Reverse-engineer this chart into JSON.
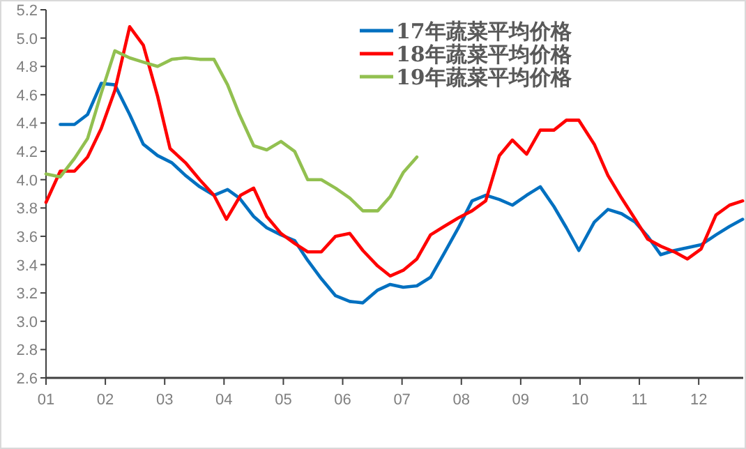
{
  "chart_data": {
    "type": "line",
    "xlim": [
      1,
      12.75
    ],
    "ylim": [
      2.6,
      5.2
    ],
    "xticks": [
      {
        "value": 1,
        "label": "01"
      },
      {
        "value": 2,
        "label": "02"
      },
      {
        "value": 3,
        "label": "03"
      },
      {
        "value": 4,
        "label": "04"
      },
      {
        "value": 5,
        "label": "05"
      },
      {
        "value": 6,
        "label": "06"
      },
      {
        "value": 7,
        "label": "07"
      },
      {
        "value": 8,
        "label": "08"
      },
      {
        "value": 9,
        "label": "09"
      },
      {
        "value": 10,
        "label": "10"
      },
      {
        "value": 11,
        "label": "11"
      },
      {
        "value": 12,
        "label": "12"
      }
    ],
    "yticks": [
      {
        "value": 2.6,
        "label": "2.6"
      },
      {
        "value": 2.8,
        "label": "2.8"
      },
      {
        "value": 3.0,
        "label": "3.0"
      },
      {
        "value": 3.2,
        "label": "3.2"
      },
      {
        "value": 3.4,
        "label": "3.4"
      },
      {
        "value": 3.6,
        "label": "3.6"
      },
      {
        "value": 3.8,
        "label": "3.8"
      },
      {
        "value": 4.0,
        "label": "4.0"
      },
      {
        "value": 4.2,
        "label": "4.2"
      },
      {
        "value": 4.4,
        "label": "4.4"
      },
      {
        "value": 4.6,
        "label": "4.6"
      },
      {
        "value": 4.8,
        "label": "4.8"
      },
      {
        "value": 5.0,
        "label": "5.0"
      },
      {
        "value": 5.2,
        "label": "5.2"
      }
    ],
    "grid": false,
    "legend": "top",
    "marker": "none",
    "line_style": "solid",
    "series": [
      {
        "name": "17年蔬菜平均价格",
        "color": "#0070c0",
        "x": [
          1.24,
          1.48,
          1.7,
          1.93,
          2.16,
          2.41,
          2.64,
          2.88,
          3.12,
          3.35,
          3.59,
          3.83,
          4.06,
          4.26,
          4.5,
          4.72,
          4.96,
          5.19,
          5.41,
          5.64,
          5.88,
          6.12,
          6.34,
          6.59,
          6.8,
          7.02,
          7.25,
          7.48,
          7.71,
          7.95,
          8.18,
          8.41,
          8.64,
          8.86,
          9.1,
          9.33,
          9.56,
          9.77,
          9.98,
          10.24,
          10.47,
          10.7,
          10.93,
          11.14,
          11.36,
          11.59,
          11.81,
          12.04,
          12.29,
          12.52,
          12.74
        ],
        "values": [
          4.39,
          4.39,
          4.46,
          4.68,
          4.67,
          4.46,
          4.25,
          4.17,
          4.12,
          4.03,
          3.95,
          3.89,
          3.93,
          3.87,
          3.74,
          3.66,
          3.61,
          3.57,
          3.43,
          3.3,
          3.18,
          3.14,
          3.13,
          3.22,
          3.26,
          3.24,
          3.25,
          3.31,
          3.48,
          3.66,
          3.85,
          3.89,
          3.86,
          3.82,
          3.89,
          3.95,
          3.81,
          3.66,
          3.5,
          3.7,
          3.79,
          3.76,
          3.7,
          3.6,
          3.47,
          3.5,
          3.52,
          3.54,
          3.61,
          3.67,
          3.72
        ]
      },
      {
        "name": "18年蔬菜平均价格",
        "color": "#ff0000",
        "x": [
          1.0,
          1.24,
          1.48,
          1.7,
          1.93,
          2.16,
          2.41,
          2.64,
          2.88,
          3.09,
          3.35,
          3.59,
          3.83,
          4.04,
          4.28,
          4.5,
          4.72,
          4.96,
          5.19,
          5.41,
          5.64,
          5.88,
          6.12,
          6.34,
          6.59,
          6.8,
          7.02,
          7.25,
          7.48,
          7.71,
          7.95,
          8.18,
          8.41,
          8.64,
          8.86,
          9.1,
          9.33,
          9.56,
          9.77,
          9.98,
          10.24,
          10.47,
          10.7,
          10.93,
          11.14,
          11.36,
          11.59,
          11.81,
          12.04,
          12.29,
          12.52,
          12.74
        ],
        "values": [
          3.84,
          4.06,
          4.06,
          4.16,
          4.36,
          4.63,
          5.08,
          4.95,
          4.59,
          4.22,
          4.12,
          4.0,
          3.89,
          3.72,
          3.89,
          3.94,
          3.74,
          3.62,
          3.55,
          3.49,
          3.49,
          3.6,
          3.62,
          3.5,
          3.39,
          3.32,
          3.36,
          3.44,
          3.61,
          3.67,
          3.73,
          3.78,
          3.85,
          4.17,
          4.28,
          4.18,
          4.35,
          4.35,
          4.42,
          4.42,
          4.25,
          4.03,
          3.87,
          3.72,
          3.58,
          3.53,
          3.49,
          3.44,
          3.51,
          3.75,
          3.82,
          3.85
        ]
      },
      {
        "name": "19年蔬菜平均价格",
        "color": "#92c050",
        "x": [
          1.0,
          1.24,
          1.48,
          1.7,
          1.93,
          2.16,
          2.41,
          2.64,
          2.88,
          3.12,
          3.35,
          3.59,
          3.83,
          4.06,
          4.26,
          4.5,
          4.72,
          4.96,
          5.19,
          5.41,
          5.64,
          5.88,
          6.12,
          6.34,
          6.59,
          6.8,
          7.02,
          7.25
        ],
        "values": [
          4.04,
          4.02,
          4.15,
          4.29,
          4.61,
          4.91,
          4.86,
          4.83,
          4.8,
          4.85,
          4.86,
          4.85,
          4.85,
          4.67,
          4.46,
          4.24,
          4.21,
          4.27,
          4.2,
          4.0,
          4.0,
          3.94,
          3.87,
          3.78,
          3.78,
          3.88,
          4.05,
          4.16
        ]
      }
    ]
  }
}
